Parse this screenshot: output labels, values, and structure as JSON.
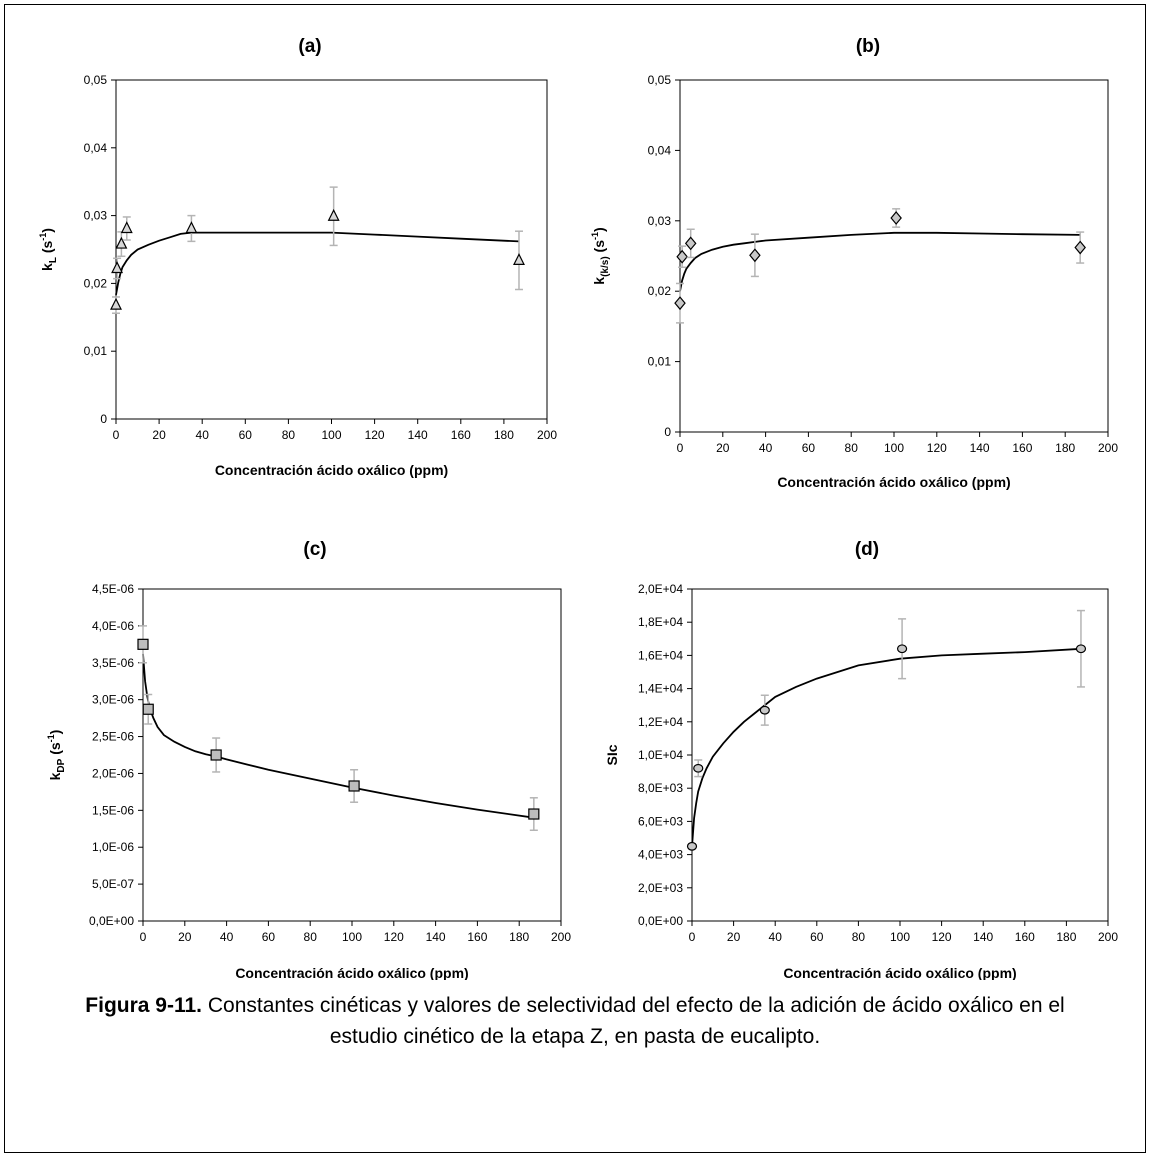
{
  "caption": {
    "label": "Figura 9-11.",
    "text": "Constantes cinéticas y valores de selectividad del efecto de la adición de ácido oxálico en el estudio cinético de la etapa Z, en pasta de eucalipto."
  },
  "chart_data": [
    {
      "id": "a",
      "type": "scatter",
      "title": "(a)",
      "xlabel": "Concentración ácido oxálico (ppm)",
      "ylabel": "k_L (s^-1)",
      "ylabel_parts": {
        "base": "k",
        "sub": "L",
        "unit": " (s",
        "sup": "-1",
        "close": ")"
      },
      "xlim": [
        0,
        200
      ],
      "ylim": [
        0,
        0.05
      ],
      "xticks": [
        0,
        20,
        40,
        60,
        80,
        100,
        120,
        140,
        160,
        180,
        200
      ],
      "yticks": [
        0,
        0.01,
        0.02,
        0.03,
        0.04,
        0.05
      ],
      "yticklabels": [
        "0",
        "0,01",
        "0,02",
        "0,03",
        "0,04",
        "0,05"
      ],
      "marker": "triangle",
      "marker_fill": "#d8d8d8",
      "errorbar_color": "#b4b4b4",
      "points": [
        {
          "x": 0,
          "y": 0.0168,
          "err": 0.0012
        },
        {
          "x": 0.5,
          "y": 0.0222,
          "err": 0.0015
        },
        {
          "x": 2.5,
          "y": 0.0258,
          "err": 0.0018
        },
        {
          "x": 5,
          "y": 0.0281,
          "err": 0.0017
        },
        {
          "x": 35,
          "y": 0.0281,
          "err": 0.0019
        },
        {
          "x": 101,
          "y": 0.0299,
          "err": 0.0043
        },
        {
          "x": 187,
          "y": 0.0234,
          "err": 0.0043
        }
      ],
      "fit": {
        "x": [
          0,
          1,
          2,
          3,
          5,
          7,
          10,
          15,
          20,
          25,
          30,
          35,
          40,
          60,
          80,
          100,
          120,
          140,
          160,
          187
        ],
        "y": [
          0.0183,
          0.0201,
          0.0214,
          0.0224,
          0.0234,
          0.0242,
          0.025,
          0.0257,
          0.0263,
          0.0268,
          0.0273,
          0.0275,
          0.0275,
          0.0275,
          0.0275,
          0.0275,
          0.0272,
          0.0269,
          0.0266,
          0.0262
        ]
      }
    },
    {
      "id": "b",
      "type": "scatter",
      "title": "(b)",
      "xlabel": "Concentración ácido oxálico (ppm)",
      "ylabel": "k_(k/s) (s^-1)",
      "ylabel_parts": {
        "base": "k",
        "sub": "(k/s)",
        "unit": " (s",
        "sup": "-1",
        "close": ")"
      },
      "xlim": [
        0,
        200
      ],
      "ylim": [
        0,
        0.05
      ],
      "xticks": [
        0,
        20,
        40,
        60,
        80,
        100,
        120,
        140,
        160,
        180,
        200
      ],
      "yticks": [
        0,
        0.01,
        0.02,
        0.03,
        0.04,
        0.05
      ],
      "yticklabels": [
        "0",
        "0,01",
        "0,02",
        "0,03",
        "0,04",
        "0,05"
      ],
      "marker": "diamond",
      "marker_fill": "#c8c8c8",
      "errorbar_color": "#b4b4b4",
      "points": [
        {
          "x": 0,
          "y": 0.0183,
          "err": 0.0028
        },
        {
          "x": 1,
          "y": 0.0249,
          "err": 0.0015
        },
        {
          "x": 5,
          "y": 0.0268,
          "err": 0.002
        },
        {
          "x": 35,
          "y": 0.0251,
          "err": 0.003
        },
        {
          "x": 101,
          "y": 0.0304,
          "err": 0.0013
        },
        {
          "x": 187,
          "y": 0.0262,
          "err": 0.0022
        }
      ],
      "fit": {
        "x": [
          0,
          1,
          2,
          3,
          5,
          7,
          10,
          15,
          20,
          25,
          30,
          35,
          40,
          60,
          80,
          100,
          120,
          140,
          160,
          187
        ],
        "y": [
          0.02,
          0.0215,
          0.0225,
          0.0232,
          0.024,
          0.0247,
          0.0253,
          0.0259,
          0.0263,
          0.0266,
          0.0268,
          0.027,
          0.0272,
          0.0276,
          0.028,
          0.0283,
          0.0283,
          0.0282,
          0.0281,
          0.028
        ]
      }
    },
    {
      "id": "c",
      "type": "scatter",
      "title": "(c)",
      "xlabel": "Concentración ácido oxálico (ppm)",
      "ylabel": "k_DP (s^-1)",
      "ylabel_parts": {
        "base": "k",
        "sub": "DP",
        "unit": " (s",
        "sup": "-1",
        "close": ")"
      },
      "xlim": [
        0,
        200
      ],
      "ylim": [
        0,
        4.5e-06
      ],
      "xticks": [
        0,
        20,
        40,
        60,
        80,
        100,
        120,
        140,
        160,
        180,
        200
      ],
      "yticks": [
        0,
        5e-07,
        1e-06,
        1.5e-06,
        2e-06,
        2.5e-06,
        3e-06,
        3.5e-06,
        4e-06,
        4.5e-06
      ],
      "yticklabels": [
        "0,0E+00",
        "5,0E-07",
        "1,0E-06",
        "1,5E-06",
        "2,0E-06",
        "2,5E-06",
        "3,0E-06",
        "3,5E-06",
        "4,0E-06",
        "4,5E-06"
      ],
      "marker": "square",
      "marker_fill": "#bdbdbd",
      "errorbar_color": "#b4b4b4",
      "points": [
        {
          "x": 0,
          "y": 3.75e-06,
          "err": 2.5e-07
        },
        {
          "x": 2.5,
          "y": 2.87e-06,
          "err": 2e-07
        },
        {
          "x": 35,
          "y": 2.25e-06,
          "err": 2.3e-07
        },
        {
          "x": 101,
          "y": 1.83e-06,
          "err": 2.2e-07
        },
        {
          "x": 187,
          "y": 1.45e-06,
          "err": 2.2e-07
        }
      ],
      "fit": {
        "x": [
          0,
          1,
          2,
          3,
          5,
          7,
          10,
          15,
          20,
          25,
          30,
          35,
          40,
          50,
          60,
          80,
          100,
          120,
          140,
          160,
          187
        ],
        "y": [
          3.62e-06,
          3.25e-06,
          3.05e-06,
          2.9e-06,
          2.75e-06,
          2.63e-06,
          2.52e-06,
          2.43e-06,
          2.36e-06,
          2.3e-06,
          2.26e-06,
          2.23e-06,
          2.19e-06,
          2.12e-06,
          2.05e-06,
          1.93e-06,
          1.81e-06,
          1.7e-06,
          1.6e-06,
          1.51e-06,
          1.4e-06
        ]
      }
    },
    {
      "id": "d",
      "type": "scatter",
      "title": "(d)",
      "xlabel": "Concentración ácido oxálico (ppm)",
      "ylabel": "SIc",
      "ylabel_parts": {
        "base": "SIc",
        "sub": "",
        "unit": "",
        "sup": "",
        "close": ""
      },
      "xlim": [
        0,
        200
      ],
      "ylim": [
        0,
        20000
      ],
      "xticks": [
        0,
        20,
        40,
        60,
        80,
        100,
        120,
        140,
        160,
        180,
        200
      ],
      "yticks": [
        0,
        2000,
        4000,
        6000,
        8000,
        10000,
        12000,
        14000,
        16000,
        18000,
        20000
      ],
      "yticklabels": [
        "0,0E+00",
        "2,0E+03",
        "4,0E+03",
        "6,0E+03",
        "8,0E+03",
        "1,0E+04",
        "1,2E+04",
        "1,4E+04",
        "1,6E+04",
        "1,8E+04",
        "2,0E+04"
      ],
      "marker": "circle",
      "marker_fill": "#c8c8c8",
      "errorbar_color": "#b4b4b4",
      "points": [
        {
          "x": 0,
          "y": 4500,
          "err": 0
        },
        {
          "x": 3,
          "y": 9200,
          "err": 500
        },
        {
          "x": 35,
          "y": 12700,
          "err": 900
        },
        {
          "x": 101,
          "y": 16400,
          "err": 1800
        },
        {
          "x": 187,
          "y": 16400,
          "err": 2300
        }
      ],
      "fit": {
        "x": [
          0,
          1,
          2,
          3,
          5,
          7,
          10,
          15,
          20,
          25,
          30,
          40,
          50,
          60,
          80,
          100,
          120,
          140,
          160,
          187
        ],
        "y": [
          4500,
          6200,
          7100,
          7800,
          8600,
          9200,
          9900,
          10700,
          11400,
          12000,
          12500,
          13500,
          14100,
          14600,
          15400,
          15800,
          16000,
          16100,
          16200,
          16400
        ]
      }
    }
  ]
}
